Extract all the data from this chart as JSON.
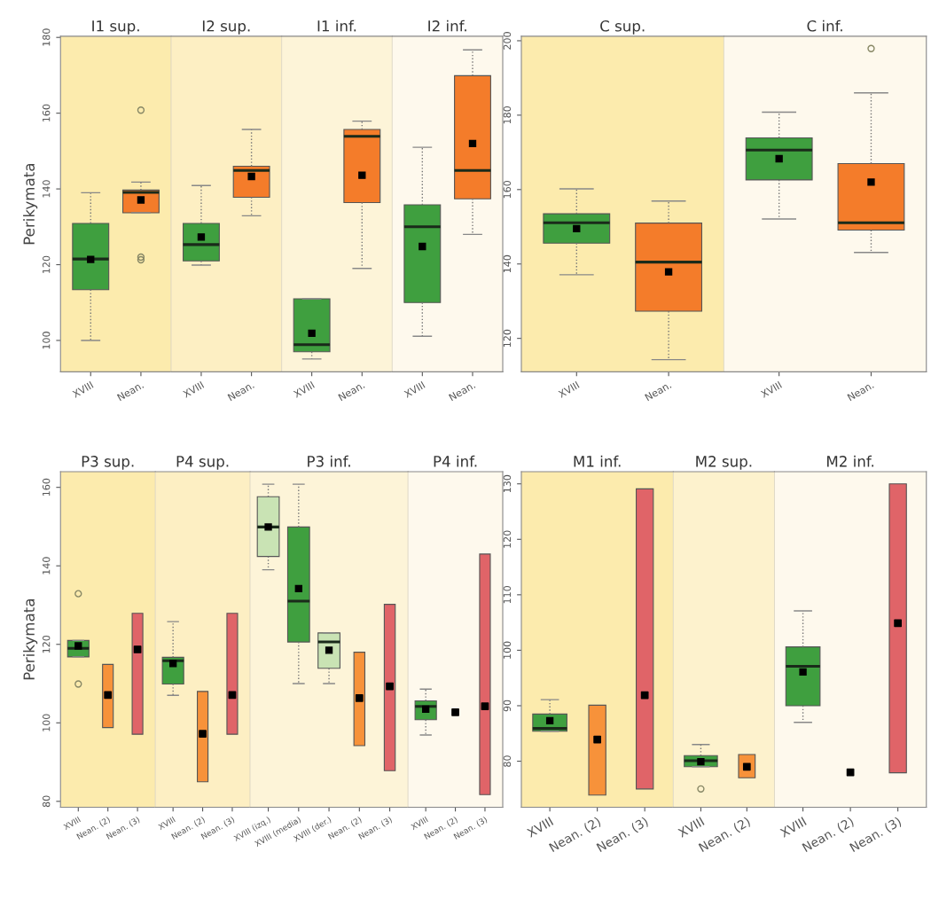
{
  "chart_data": [
    {
      "type": "box",
      "title": "I1 sup.",
      "ylabel": "Perikymata",
      "categories": [
        "XVIII",
        "Nean."
      ],
      "ylim": [
        91.7,
        180.3
      ],
      "yticks": [
        100,
        120,
        140,
        160,
        180
      ],
      "series": [
        {
          "colors": [
            "#3f9f3f",
            "#f47c2a"
          ],
          "boxes": [
            {
              "low": 100,
              "q1": 113.4,
              "median": 121.5,
              "q3": 130.9,
              "high": 139,
              "mean": 121.4
            },
            {
              "low": 133.7,
              "q1": 133.7,
              "median": 139.1,
              "q3": 139.7,
              "high": 141.8,
              "mean": 137.1,
              "outliers": [
                160.8,
                121.3,
                122
              ]
            }
          ]
        }
      ]
    },
    {
      "type": "box",
      "title": "I2 sup.",
      "tick_labels": "x",
      "categories": [
        "XVIII",
        "Nean."
      ],
      "ylim": [
        91.7,
        180.3
      ],
      "yticks": [
        100,
        120,
        140,
        160,
        180
      ],
      "series": [
        {
          "colors": [
            "#3f9f3f",
            "#f47c2a"
          ],
          "boxes": [
            {
              "low": 119.9,
              "q1": 121,
              "median": 125.3,
              "q3": 130.9,
              "high": 140.9,
              "mean": 127.3
            },
            {
              "low": 132.9,
              "q1": 137.8,
              "median": 144.9,
              "q3": 146,
              "high": 155.7,
              "mean": 143.3
            }
          ]
        }
      ]
    },
    {
      "type": "box",
      "title": "I1 inf.",
      "tick_labels": "x",
      "categories": [
        "XVIII",
        "Nean."
      ],
      "ylim": [
        91.7,
        180.3
      ],
      "yticks": [
        100,
        120,
        140,
        160,
        180
      ],
      "series": [
        {
          "colors": [
            "#3f9f3f",
            "#f47c2a"
          ],
          "boxes": [
            {
              "low": 95.1,
              "q1": 97,
              "median": 98.9,
              "q3": 111,
              "high": 111,
              "mean": 101.9
            },
            {
              "low": 119,
              "q1": 136.4,
              "median": 153.9,
              "q3": 155.7,
              "high": 157.9,
              "mean": 143.6
            }
          ]
        }
      ]
    },
    {
      "type": "box",
      "title": "I2 inf.",
      "tick_labels": "x",
      "categories": [
        "XVIII",
        "Nean."
      ],
      "ylim": [
        91.7,
        180.3
      ],
      "yticks": [
        100,
        120,
        140,
        160,
        180
      ],
      "series": [
        {
          "colors": [
            "#3f9f3f",
            "#f47c2a"
          ],
          "boxes": [
            {
              "low": 101.1,
              "q1": 110,
              "median": 130,
              "q3": 135.8,
              "high": 151,
              "mean": 124.8
            },
            {
              "low": 128,
              "q1": 137.4,
              "median": 144.9,
              "q3": 169.9,
              "high": 176.7,
              "mean": 152
            }
          ]
        }
      ]
    },
    {
      "type": "box",
      "title": "C sup.",
      "categories": [
        "XVIII",
        "Nean."
      ],
      "ylim": [
        111,
        201.2
      ],
      "yticks": [
        120,
        140,
        160,
        180,
        200
      ],
      "series": [
        {
          "colors": [
            "#3f9f3f",
            "#f47c2a"
          ],
          "boxes": [
            {
              "low": 137.1,
              "q1": 145.6,
              "median": 151.1,
              "q3": 153.5,
              "high": 160.2,
              "mean": 149.5
            },
            {
              "low": 114.3,
              "q1": 127.3,
              "median": 140.5,
              "q3": 151,
              "high": 156.9,
              "mean": 137.9
            }
          ]
        }
      ]
    },
    {
      "type": "box",
      "title": "C inf.",
      "tick_labels": "x",
      "categories": [
        "XVIII",
        "Nean."
      ],
      "ylim": [
        111,
        201.2
      ],
      "yticks": [
        120,
        140,
        160,
        180,
        200
      ],
      "series": [
        {
          "colors": [
            "#3f9f3f",
            "#f47c2a"
          ],
          "boxes": [
            {
              "low": 152.1,
              "q1": 162.6,
              "median": 170.6,
              "q3": 173.9,
              "high": 180.8,
              "mean": 168.3
            },
            {
              "low": 143.1,
              "q1": 149.1,
              "median": 151.1,
              "q3": 167,
              "high": 186,
              "mean": 162,
              "outliers": [
                197.9
              ]
            }
          ]
        }
      ]
    },
    {
      "type": "box",
      "title": "P3 sup.",
      "ylabel": "Perikymata",
      "categories": [
        "XVIII",
        "Nean. (2)",
        "Nean. (3)"
      ],
      "ylim": [
        78.5,
        164
      ],
      "yticks": [
        80,
        100,
        120,
        140,
        160
      ],
      "series": [
        {
          "colors": [
            "#3f9f3f",
            null,
            null
          ],
          "boxes": [
            {
              "low": 116.8,
              "q1": 116.8,
              "median": 119,
              "q3": 121,
              "high": 121,
              "mean": 119.6,
              "outliers": [
                132.9,
                109.9
              ]
            },
            null,
            null
          ]
        },
        {
          "type": "bar",
          "colors": [
            null,
            "#f7923a",
            "#e06468"
          ],
          "base": [
            null,
            98.8,
            97.1
          ],
          "values": [
            null,
            16.1,
            30.8
          ]
        },
        {
          "type": "scatter",
          "color": "#000000",
          "marker": "square",
          "values": [
            null,
            107.1,
            118.7
          ]
        }
      ]
    },
    {
      "type": "box",
      "title": "P4 sup.",
      "tick_labels": "x",
      "categories": [
        "XVIII",
        "Nean. (2)",
        "Nean. (3)"
      ],
      "ylim": [
        78.5,
        164
      ],
      "yticks": [
        80,
        100,
        120,
        140,
        160
      ],
      "series": [
        {
          "colors": [
            "#3f9f3f",
            null,
            null
          ],
          "boxes": [
            {
              "low": 107,
              "q1": 109.9,
              "median": 115.8,
              "q3": 116.7,
              "high": 125.8,
              "mean": 115.1
            },
            null,
            null
          ]
        },
        {
          "type": "bar",
          "colors": [
            null,
            "#f7923a",
            "#e06468"
          ],
          "base": [
            null,
            85,
            97.1
          ],
          "values": [
            null,
            23,
            30.8
          ]
        },
        {
          "type": "scatter",
          "color": "#000000",
          "marker": "square",
          "values": [
            null,
            97.2,
            107.1
          ]
        }
      ]
    },
    {
      "type": "box",
      "title": "P3 inf.",
      "tick_labels": "x",
      "categories": [
        "XVIII (izq.)",
        "XVIII (media)",
        "XVIII (der.)",
        "Nean. (2)",
        "Nean. (3)"
      ],
      "ylim": [
        78.5,
        164
      ],
      "yticks": [
        80,
        100,
        120,
        140,
        160
      ],
      "series": [
        {
          "colors": [
            "#c9e3b4",
            "#3f9f3f",
            "#c9e3b4",
            null,
            null
          ],
          "boxes": [
            {
              "low": 139,
              "q1": 142.4,
              "median": 149.9,
              "q3": 157.6,
              "high": 160.8,
              "mean": 149.9
            },
            {
              "low": 110,
              "q1": 120.6,
              "median": 131,
              "q3": 149.9,
              "high": 160.8,
              "mean": 134.2
            },
            {
              "low": 110,
              "q1": 113.9,
              "median": 120.6,
              "q3": 122.9,
              "high": 122.9,
              "mean": 118.5
            },
            null,
            null
          ]
        },
        {
          "type": "bar",
          "colors": [
            null,
            null,
            null,
            "#f7923a",
            "#e06468"
          ],
          "base": [
            null,
            null,
            null,
            94.2,
            87.8
          ],
          "values": [
            null,
            null,
            null,
            23.8,
            42.4
          ]
        },
        {
          "type": "scatter",
          "color": "#000000",
          "marker": "square",
          "values": [
            null,
            null,
            null,
            106.3,
            109.3
          ]
        }
      ]
    },
    {
      "type": "box",
      "title": "P4 inf.",
      "tick_labels": "x",
      "categories": [
        "XVIII",
        "Nean. (2)",
        "Nean. (3)"
      ],
      "ylim": [
        78.5,
        164
      ],
      "yticks": [
        80,
        100,
        120,
        140,
        160
      ],
      "series": [
        {
          "colors": [
            "#3f9f3f",
            null,
            null
          ],
          "boxes": [
            {
              "low": 96.9,
              "q1": 100.8,
              "median": 104.2,
              "q3": 105.6,
              "high": 108.6,
              "mean": 103.5
            },
            null,
            null
          ]
        },
        {
          "type": "bar",
          "colors": [
            null,
            null,
            "#e06468"
          ],
          "base": [
            null,
            null,
            81.7
          ],
          "values": [
            null,
            null,
            61.3
          ]
        },
        {
          "type": "scatter",
          "color": "#000000",
          "marker": "square",
          "values": [
            null,
            102.7,
            104.2
          ]
        }
      ]
    },
    {
      "type": "box",
      "title": "M1 inf.",
      "categories": [
        "XVIII",
        "Nean. (2)",
        "Nean. (3)"
      ],
      "ylim": [
        71.7,
        132.2
      ],
      "yticks": [
        80,
        90,
        100,
        110,
        120,
        130
      ],
      "series": [
        {
          "colors": [
            "#3f9f3f",
            null,
            null
          ],
          "boxes": [
            {
              "low": 85.4,
              "q1": 85.4,
              "median": 85.9,
              "q3": 88.5,
              "high": 91.1,
              "mean": 87.3
            },
            null,
            null
          ]
        },
        {
          "type": "bar",
          "colors": [
            null,
            "#f7923a",
            "#e06468"
          ],
          "base": [
            null,
            73.9,
            75
          ],
          "values": [
            null,
            16.2,
            54.1
          ]
        },
        {
          "type": "scatter",
          "color": "#000000",
          "marker": "square",
          "values": [
            null,
            83.9,
            91.9
          ]
        }
      ]
    },
    {
      "type": "box",
      "title": "M2 sup.",
      "tick_labels": "x",
      "categories": [
        "XVIII",
        "Nean. (2)"
      ],
      "ylim": [
        71.7,
        132.2
      ],
      "yticks": [
        80,
        90,
        100,
        110,
        120,
        130
      ],
      "series": [
        {
          "colors": [
            "#3f9f3f",
            null
          ],
          "boxes": [
            {
              "low": 79,
              "q1": 79,
              "median": 80.1,
              "q3": 81,
              "high": 83,
              "mean": 79.9,
              "outliers": [
                75
              ]
            },
            null
          ]
        },
        {
          "type": "bar",
          "colors": [
            null,
            "#f7923a"
          ],
          "base": [
            null,
            77
          ],
          "values": [
            null,
            4.2
          ]
        },
        {
          "type": "scatter",
          "color": "#000000",
          "marker": "square",
          "values": [
            null,
            79
          ]
        }
      ]
    },
    {
      "type": "box",
      "title": "M2 inf.",
      "tick_labels": "x",
      "categories": [
        "XVIII",
        "Nean. (2)",
        "Nean. (3)"
      ],
      "ylim": [
        71.7,
        132.2
      ],
      "yticks": [
        80,
        90,
        100,
        110,
        120,
        130
      ],
      "series": [
        {
          "colors": [
            "#3f9f3f",
            null,
            null
          ],
          "boxes": [
            {
              "low": 87,
              "q1": 90,
              "median": 97.1,
              "q3": 100.6,
              "high": 107.1,
              "mean": 96.1
            },
            null,
            null
          ]
        },
        {
          "type": "bar",
          "colors": [
            null,
            null,
            "#e06468"
          ],
          "base": [
            null,
            null,
            77.9
          ],
          "values": [
            null,
            null,
            52.1
          ]
        },
        {
          "type": "scatter",
          "color": "#000000",
          "marker": "square",
          "values": [
            null,
            78,
            104.9
          ]
        }
      ]
    }
  ]
}
